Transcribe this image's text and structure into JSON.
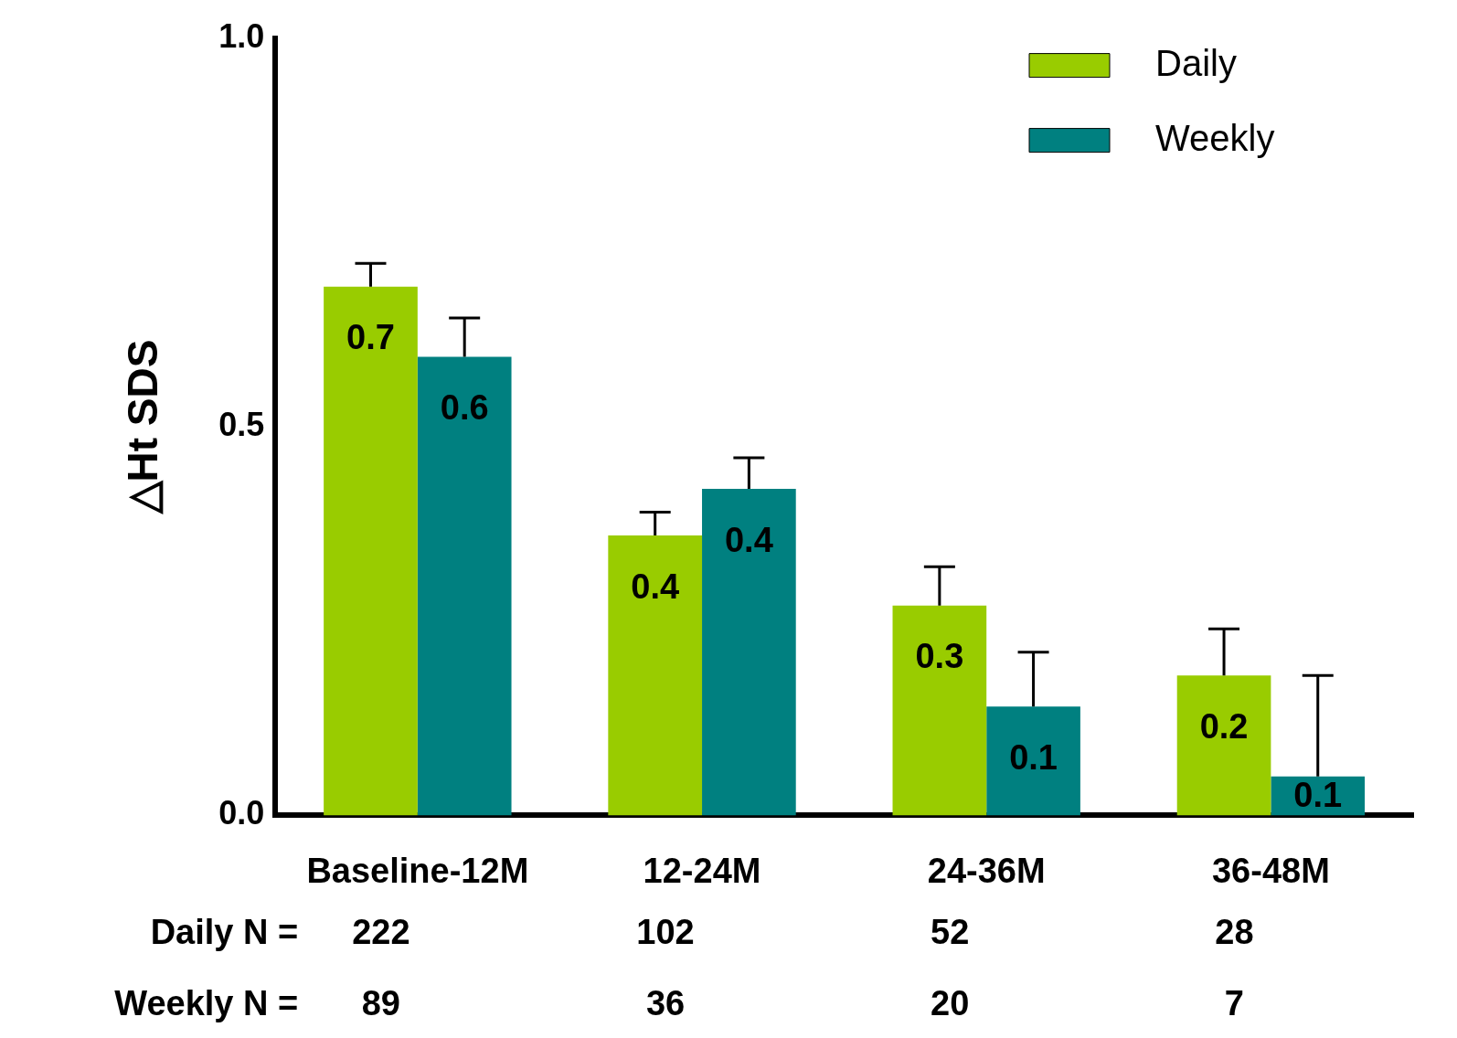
{
  "chart_data": {
    "type": "bar",
    "ylabel": "△Ht SDS",
    "categories": [
      "Baseline-12M",
      "12-24M",
      "24-36M",
      "36-48M"
    ],
    "series": [
      {
        "name": "Daily",
        "color": "#99cc00",
        "values": [
          0.68,
          0.36,
          0.27,
          0.18
        ],
        "value_labels": [
          "0.7",
          "0.4",
          "0.3",
          "0.2"
        ],
        "errors": [
          [
            0.68,
            0.71
          ],
          [
            0.36,
            0.39
          ],
          [
            0.27,
            0.32
          ],
          [
            0.18,
            0.24
          ]
        ]
      },
      {
        "name": "Weekly",
        "color": "#008080",
        "values": [
          0.59,
          0.42,
          0.14,
          0.05
        ],
        "value_labels": [
          "0.6",
          "0.4",
          "0.1",
          "0.1"
        ],
        "errors": [
          [
            0.59,
            0.64
          ],
          [
            0.42,
            0.46
          ],
          [
            0.14,
            0.21
          ],
          [
            0.05,
            0.18
          ]
        ]
      }
    ],
    "ylim": [
      0,
      1
    ],
    "yticks": [
      {
        "value": 0,
        "label": "0.0"
      },
      {
        "value": 0.5,
        "label": "0.5"
      },
      {
        "value": 1,
        "label": "1.0"
      }
    ],
    "grid": false,
    "legend": "top right",
    "annotations": [
      "Daily N =",
      "222",
      "102",
      "52",
      "28",
      "Weekly N =",
      "89",
      "36",
      "20",
      "7"
    ]
  }
}
